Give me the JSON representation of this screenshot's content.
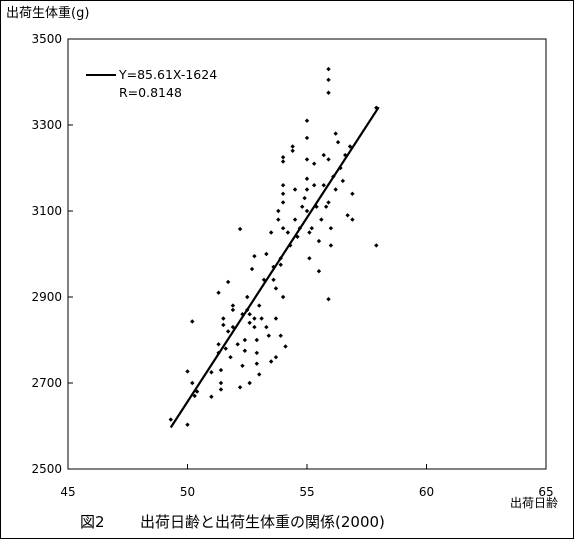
{
  "caption": {
    "figure_number": "図2",
    "title": "出荷日齢と出荷生体重の関係(2000)"
  },
  "chart_data": {
    "type": "scatter",
    "title": "",
    "ylabel": "出荷生体重(g)",
    "xlabel": "出荷日齢",
    "xlim": [
      45,
      65
    ],
    "ylim": [
      2500,
      3500
    ],
    "xticks": [
      45,
      50,
      55,
      60,
      65
    ],
    "yticks": [
      2500,
      2700,
      2900,
      3100,
      3300,
      3500
    ],
    "grid": false,
    "legend": {
      "placement": "top-left",
      "equation": "Y=85.61X-1624",
      "r_label": "R=0.8148"
    },
    "regression": {
      "slope": 85.61,
      "intercept": -1624,
      "x_range": [
        49.3,
        58
      ]
    },
    "points": [
      [
        49.3,
        2615
      ],
      [
        50.0,
        2603
      ],
      [
        50.0,
        2727
      ],
      [
        50.2,
        2843
      ],
      [
        50.2,
        2700
      ],
      [
        50.3,
        2670
      ],
      [
        50.4,
        2680
      ],
      [
        51.0,
        2725
      ],
      [
        51.0,
        2668
      ],
      [
        51.3,
        2910
      ],
      [
        51.3,
        2790
      ],
      [
        51.3,
        2770
      ],
      [
        51.4,
        2730
      ],
      [
        51.4,
        2700
      ],
      [
        51.4,
        2685
      ],
      [
        51.5,
        2850
      ],
      [
        51.5,
        2835
      ],
      [
        51.6,
        2780
      ],
      [
        51.7,
        2935
      ],
      [
        51.7,
        2820
      ],
      [
        51.8,
        2760
      ],
      [
        51.9,
        2880
      ],
      [
        51.9,
        2870
      ],
      [
        51.9,
        2830
      ],
      [
        52.1,
        2790
      ],
      [
        52.2,
        3058
      ],
      [
        52.2,
        2690
      ],
      [
        52.3,
        2740
      ],
      [
        52.3,
        2860
      ],
      [
        52.4,
        2800
      ],
      [
        52.4,
        2775
      ],
      [
        52.5,
        2900
      ],
      [
        52.5,
        2870
      ],
      [
        52.6,
        2860
      ],
      [
        52.6,
        2840
      ],
      [
        52.6,
        2700
      ],
      [
        52.7,
        2965
      ],
      [
        52.8,
        2995
      ],
      [
        52.8,
        2850
      ],
      [
        52.8,
        2830
      ],
      [
        52.9,
        2800
      ],
      [
        52.9,
        2770
      ],
      [
        52.9,
        2745
      ],
      [
        53.0,
        2880
      ],
      [
        53.0,
        2720
      ],
      [
        53.1,
        2850
      ],
      [
        53.2,
        2940
      ],
      [
        53.3,
        3000
      ],
      [
        53.3,
        2830
      ],
      [
        53.4,
        2810
      ],
      [
        53.5,
        3050
      ],
      [
        53.5,
        2750
      ],
      [
        53.6,
        2970
      ],
      [
        53.6,
        2940
      ],
      [
        53.7,
        2920
      ],
      [
        53.7,
        2850
      ],
      [
        53.7,
        2760
      ],
      [
        53.8,
        3100
      ],
      [
        53.8,
        3080
      ],
      [
        53.9,
        2990
      ],
      [
        53.9,
        2975
      ],
      [
        53.9,
        2810
      ],
      [
        54.0,
        3225
      ],
      [
        54.0,
        3215
      ],
      [
        54.0,
        3160
      ],
      [
        54.0,
        3140
      ],
      [
        54.0,
        3120
      ],
      [
        54.0,
        3060
      ],
      [
        54.0,
        2900
      ],
      [
        54.1,
        2785
      ],
      [
        54.2,
        3050
      ],
      [
        54.3,
        3020
      ],
      [
        54.4,
        3250
      ],
      [
        54.4,
        3240
      ],
      [
        54.5,
        3150
      ],
      [
        54.5,
        3080
      ],
      [
        54.6,
        3040
      ],
      [
        54.7,
        3060
      ],
      [
        54.8,
        3110
      ],
      [
        54.9,
        3130
      ],
      [
        55.0,
        3310
      ],
      [
        55.0,
        3270
      ],
      [
        55.0,
        3220
      ],
      [
        55.0,
        3175
      ],
      [
        55.0,
        3150
      ],
      [
        55.0,
        3100
      ],
      [
        55.1,
        3050
      ],
      [
        55.1,
        2990
      ],
      [
        55.2,
        3060
      ],
      [
        55.3,
        3210
      ],
      [
        55.3,
        3160
      ],
      [
        55.4,
        3110
      ],
      [
        55.5,
        3030
      ],
      [
        55.5,
        2960
      ],
      [
        55.6,
        3080
      ],
      [
        55.7,
        3230
      ],
      [
        55.7,
        3160
      ],
      [
        55.8,
        3110
      ],
      [
        55.9,
        3430
      ],
      [
        55.9,
        3405
      ],
      [
        55.9,
        3375
      ],
      [
        55.9,
        3220
      ],
      [
        55.9,
        3120
      ],
      [
        55.9,
        2895
      ],
      [
        56.0,
        3060
      ],
      [
        56.0,
        3020
      ],
      [
        56.1,
        3180
      ],
      [
        56.2,
        3280
      ],
      [
        56.2,
        3150
      ],
      [
        56.3,
        3260
      ],
      [
        56.4,
        3200
      ],
      [
        56.5,
        3170
      ],
      [
        56.6,
        3230
      ],
      [
        56.7,
        3090
      ],
      [
        56.8,
        3250
      ],
      [
        56.9,
        3140
      ],
      [
        56.9,
        3080
      ],
      [
        57.9,
        3340
      ],
      [
        57.9,
        3020
      ]
    ]
  }
}
